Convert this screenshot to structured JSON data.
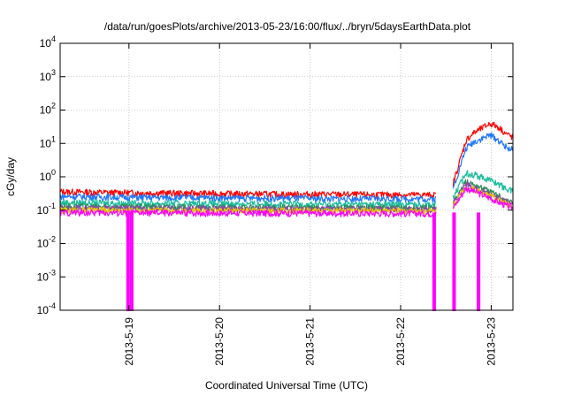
{
  "chart_data": {
    "type": "line",
    "title": "/data/run/goesPlots/archive/2013-05-23/16:00/flux/../bryn/5daysEarthData.plot",
    "xlabel": "Coordinated Universal Time (UTC)",
    "ylabel": "cGy/day",
    "yscale": "log",
    "ylim": [
      0.0001,
      10000
    ],
    "xlim": [
      0,
      5
    ],
    "x_ticks": [
      {
        "x": 0.76,
        "label": "2013-5-19"
      },
      {
        "x": 1.76,
        "label": "2013-5-20"
      },
      {
        "x": 2.76,
        "label": "2013-5-21"
      },
      {
        "x": 3.76,
        "label": "2013-5-22"
      },
      {
        "x": 4.76,
        "label": "2013-5-23"
      }
    ],
    "y_ticks": [
      {
        "y": 0.0001,
        "base": "10",
        "exp": "-4"
      },
      {
        "y": 0.001,
        "base": "10",
        "exp": "-3"
      },
      {
        "y": 0.01,
        "base": "10",
        "exp": "-2"
      },
      {
        "y": 0.1,
        "base": "10",
        "exp": "-1"
      },
      {
        "y": 1,
        "base": "10",
        "exp": "0"
      },
      {
        "y": 10,
        "base": "10",
        "exp": "1"
      },
      {
        "y": 100,
        "base": "10",
        "exp": "2"
      },
      {
        "y": 1000,
        "base": "10",
        "exp": "3"
      },
      {
        "y": 10000,
        "base": "10",
        "exp": "4"
      }
    ],
    "grid": true,
    "legend": "none",
    "series": [
      {
        "color": "#ff0000",
        "x": [
          0,
          0.5,
          1.0,
          1.5,
          2.0,
          2.5,
          3.0,
          3.5,
          4.0,
          4.3,
          4.48,
          4.5,
          4.56,
          4.65,
          4.75,
          4.85,
          4.92,
          5.0
        ],
        "y": [
          0.36,
          0.34,
          0.33,
          0.32,
          0.31,
          0.3,
          0.3,
          0.29,
          0.29,
          0.28,
          12,
          14,
          20,
          28,
          40,
          30,
          20,
          15
        ]
      },
      {
        "color": "#1f77ff",
        "x": [
          0,
          0.5,
          1.0,
          1.5,
          2.0,
          2.5,
          3.0,
          3.5,
          4.0,
          4.3,
          4.48,
          4.5,
          4.56,
          4.65,
          4.75,
          4.85,
          4.92,
          5.0
        ],
        "y": [
          0.26,
          0.25,
          0.24,
          0.24,
          0.23,
          0.23,
          0.22,
          0.22,
          0.22,
          0.21,
          7,
          8,
          11,
          14,
          18,
          12,
          8,
          6.5
        ]
      },
      {
        "color": "#1abc9c",
        "x": [
          0,
          0.5,
          1.0,
          1.5,
          2.0,
          2.5,
          3.0,
          3.5,
          4.0,
          4.3,
          4.48,
          4.5,
          4.56,
          4.65,
          4.75,
          4.85,
          4.92,
          5.0
        ],
        "y": [
          0.17,
          0.165,
          0.16,
          0.16,
          0.155,
          0.155,
          0.15,
          0.15,
          0.15,
          0.15,
          1.3,
          1.3,
          1.2,
          1.0,
          0.8,
          0.6,
          0.45,
          0.38
        ]
      },
      {
        "color": "#2e8b57",
        "x": [
          0,
          0.5,
          1.0,
          1.5,
          2.0,
          2.5,
          3.0,
          3.5,
          4.0,
          4.3,
          4.48,
          4.5,
          4.56,
          4.65,
          4.75,
          4.85,
          4.92,
          5.0
        ],
        "y": [
          0.13,
          0.125,
          0.125,
          0.12,
          0.12,
          0.12,
          0.118,
          0.118,
          0.115,
          0.115,
          0.7,
          0.68,
          0.6,
          0.48,
          0.36,
          0.26,
          0.2,
          0.17
        ]
      },
      {
        "color": "#8e44ad",
        "x": [
          0,
          0.5,
          1.0,
          1.5,
          2.0,
          2.5,
          3.0,
          3.5,
          4.0,
          4.3,
          4.48,
          4.5,
          4.56,
          4.65,
          4.75,
          4.85,
          4.92,
          5.0
        ],
        "y": [
          0.115,
          0.112,
          0.11,
          0.11,
          0.108,
          0.108,
          0.106,
          0.106,
          0.105,
          0.105,
          0.6,
          0.58,
          0.5,
          0.4,
          0.3,
          0.22,
          0.18,
          0.15
        ]
      },
      {
        "color": "#e6c700",
        "x": [
          0,
          0.5,
          1.0,
          1.5,
          2.0,
          2.5,
          3.0,
          3.5,
          4.0,
          4.3,
          4.48,
          4.5,
          4.56,
          4.65,
          4.75,
          4.85,
          4.92,
          5.0
        ],
        "y": [
          0.1,
          0.1,
          0.098,
          0.098,
          0.097,
          0.097,
          0.096,
          0.096,
          0.095,
          0.095,
          0.52,
          0.5,
          0.44,
          0.35,
          0.27,
          0.2,
          0.16,
          0.14
        ]
      },
      {
        "color": "#ff00ff",
        "x": [
          0,
          0.5,
          1.0,
          1.5,
          2.0,
          2.5,
          3.0,
          3.5,
          4.0,
          4.3,
          4.48,
          4.5,
          4.56,
          4.65,
          4.75,
          4.85,
          4.92,
          5.0
        ],
        "y": [
          0.085,
          0.084,
          0.083,
          0.083,
          0.082,
          0.082,
          0.081,
          0.081,
          0.08,
          0.08,
          0.45,
          0.44,
          0.38,
          0.3,
          0.23,
          0.17,
          0.14,
          0.12
        ]
      }
    ],
    "dropouts": [
      {
        "x": [
          0.74,
          0.76
        ],
        "y": 0.0001,
        "color": "#ff00ff"
      },
      {
        "x": [
          0.78,
          0.8
        ],
        "y": 0.0001,
        "color": "#ff00ff"
      },
      {
        "x": [
          4.12,
          4.14
        ],
        "y": 0.0001,
        "color": "#ff00ff"
      },
      {
        "x": [
          4.34,
          4.36
        ],
        "y": 0.0001,
        "color": "#ff00ff"
      },
      {
        "x": [
          4.61,
          4.63
        ],
        "y": 0.0001,
        "color": "#ff00ff"
      }
    ],
    "data_gaps": [
      [
        4.15,
        4.34
      ]
    ]
  }
}
